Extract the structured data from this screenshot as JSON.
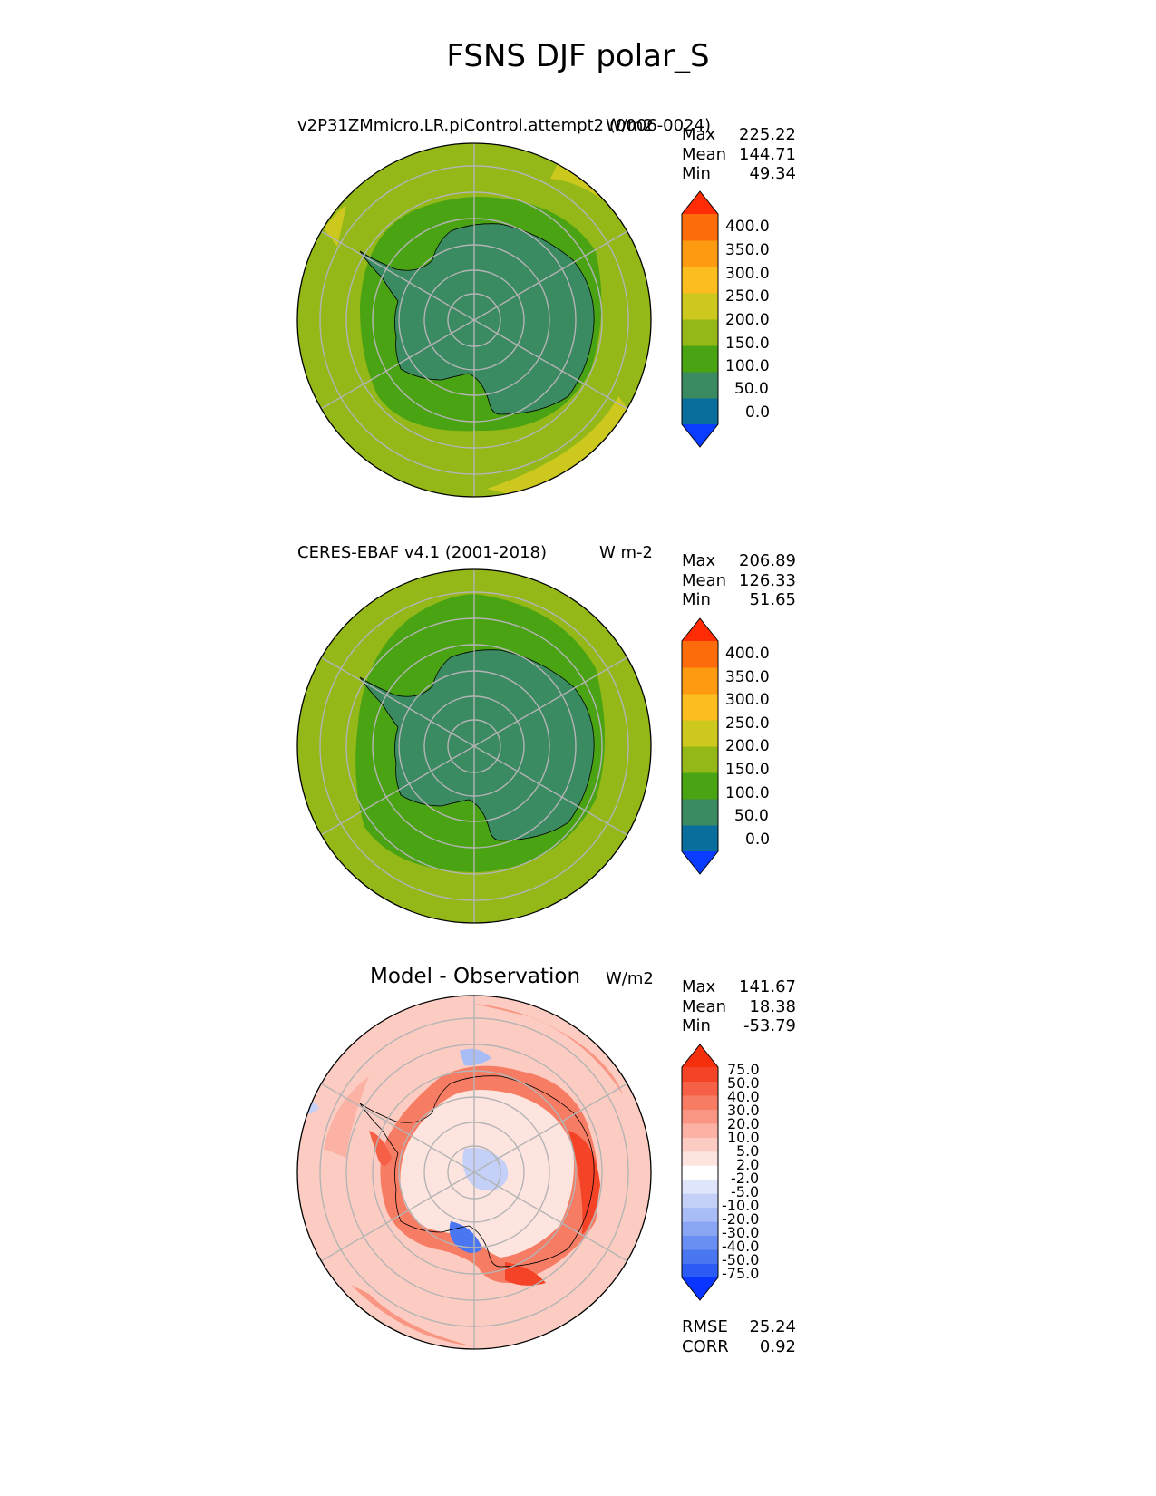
{
  "figure": {
    "title": "FSNS DJF polar_S"
  },
  "panels": [
    {
      "id": "test",
      "title": "v2P31ZMmicro.LR.piControl.attempt2 (0006-0024)",
      "units": "W/m2",
      "stats": [
        {
          "label": "Max",
          "value": "225.22"
        },
        {
          "label": "Mean",
          "value": "144.71"
        },
        {
          "label": "Min",
          "value": "49.34"
        }
      ],
      "colorbar_ticks": [
        "400.0",
        "350.0",
        "300.0",
        "250.0",
        "200.0",
        "150.0",
        "100.0",
        "50.0",
        "0.0"
      ]
    },
    {
      "id": "reference",
      "title": "CERES-EBAF v4.1 (2001-2018)",
      "units": "W m-2",
      "stats": [
        {
          "label": "Max",
          "value": "206.89"
        },
        {
          "label": "Mean",
          "value": "126.33"
        },
        {
          "label": "Min",
          "value": "51.65"
        }
      ],
      "colorbar_ticks": [
        "400.0",
        "350.0",
        "300.0",
        "250.0",
        "200.0",
        "150.0",
        "100.0",
        "50.0",
        "0.0"
      ]
    },
    {
      "id": "difference",
      "title": "Model - Observation",
      "units": "W/m2",
      "stats": [
        {
          "label": "Max",
          "value": "141.67"
        },
        {
          "label": "Mean",
          "value": "18.38"
        },
        {
          "label": "Min",
          "value": "-53.79"
        }
      ],
      "colorbar_ticks": [
        "75.0",
        "50.0",
        "40.0",
        "30.0",
        "20.0",
        "10.0",
        "5.0",
        "2.0",
        "-2.0",
        "-5.0",
        "-10.0",
        "-20.0",
        "-30.0",
        "-40.0",
        "-50.0",
        "-75.0"
      ],
      "metrics": [
        {
          "label": "RMSE",
          "value": "25.24"
        },
        {
          "label": "CORR",
          "value": "0.92"
        }
      ]
    }
  ],
  "colors": {
    "abs_levels": [
      "#0a3cff",
      "#0a6e9c",
      "#3a8a62",
      "#4aa312",
      "#93b817",
      "#ccc81d",
      "#fcbe1e",
      "#fd9a10",
      "#fd6c0a",
      "#ff2c05"
    ],
    "diff_levels": [
      "#0a34ff",
      "#2c5af5",
      "#4a76f2",
      "#6a8ff2",
      "#8aa6f3",
      "#a8bcf6",
      "#c4d0f8",
      "#dfe5fb",
      "#ffffff",
      "#fde4df",
      "#fcccc2",
      "#fbb1a3",
      "#f99683",
      "#f77c64",
      "#f56046",
      "#f44326",
      "#f52e0c"
    ],
    "ocean_abs": "#93b817",
    "ice_abs": "#3a8a62",
    "ring_abs": "#4aa312"
  }
}
